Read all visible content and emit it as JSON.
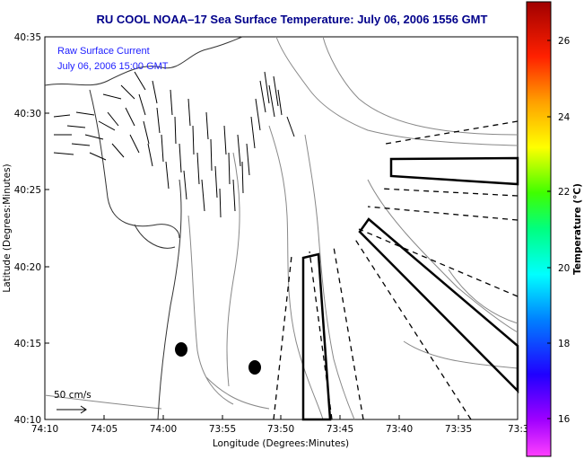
{
  "title": "RU COOL  NOAA–17  Sea Surface Temperature:  July 06, 2006 1556 GMT",
  "annotation": {
    "line1": "Raw Surface Current",
    "line2": "July 06, 2006 15:00 GMT"
  },
  "scale": {
    "label": "50 cm/s"
  },
  "axes": {
    "xlabel": "Longitude (Degrees:Minutes)",
    "ylabel": "Latitude (Degrees:Minutes)",
    "xticks": [
      "74:10",
      "74:05",
      "74:00",
      "73:55",
      "73:50",
      "73:45",
      "73:40",
      "73:35",
      "73:3"
    ],
    "yticks": [
      "40:35",
      "40:30",
      "40:25",
      "40:20",
      "40:15",
      "40:10"
    ]
  },
  "colorbar": {
    "label": "Temperature (°C)",
    "ticks": [
      "26",
      "24",
      "22",
      "20",
      "18",
      "16"
    ],
    "colors": [
      "#ff00ff",
      "#8000ff",
      "#0000ff",
      "#0080ff",
      "#00ffff",
      "#00ff80",
      "#00ff00",
      "#80ff00",
      "#ffff00",
      "#ffc000",
      "#ff8000",
      "#ff4000",
      "#ff0000",
      "#b00000"
    ]
  }
}
